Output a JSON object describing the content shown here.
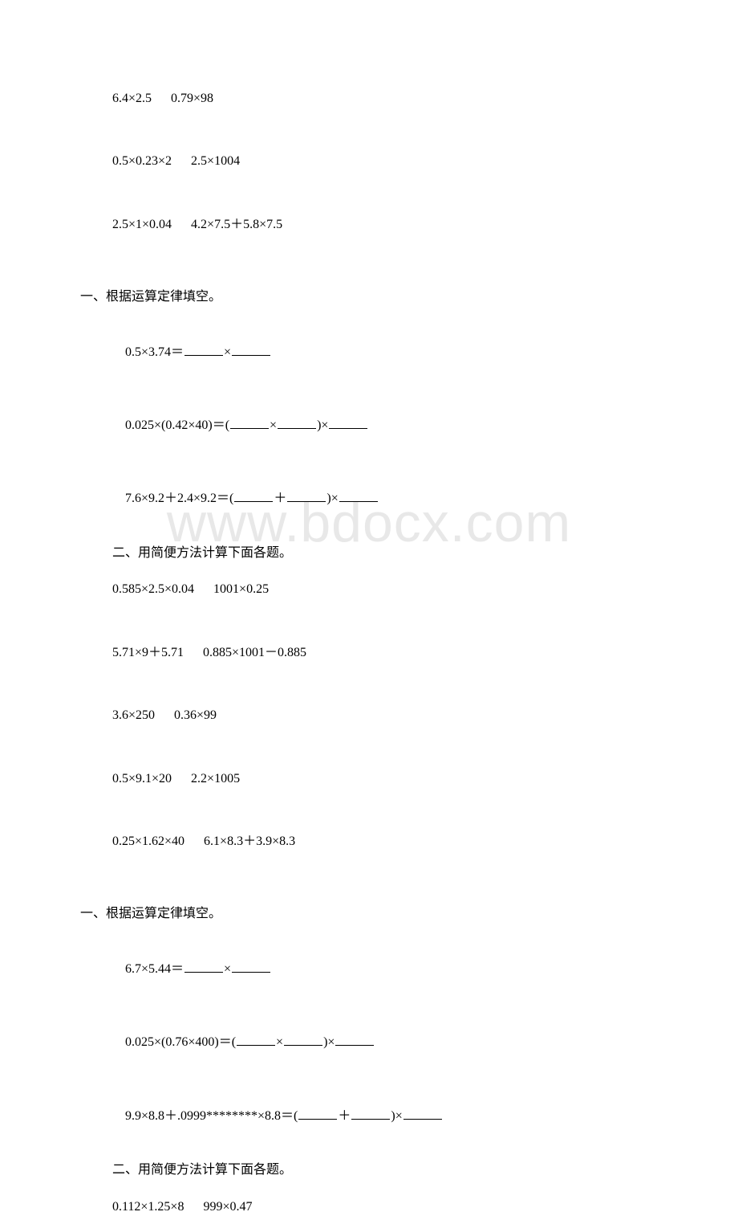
{
  "watermark": "www.bdocx.com",
  "block1": {
    "lines": [
      "6.4×2.5      0.79×98",
      "0.5×0.23×2      2.5×1004",
      "2.5×1×0.04      4.2×7.5＋5.8×7.5"
    ]
  },
  "section2": {
    "header": "一、根据运算定律填空。",
    "fill1_prefix": "0.5×3.74＝",
    "fill1_mid": "×",
    "fill2_prefix": "0.025×(0.42×40)＝(",
    "fill2_mid1": "×",
    "fill2_mid2": ")×",
    "fill3_prefix": "7.6×9.2＋2.4×9.2＝(",
    "fill3_mid1": "＋",
    "fill3_mid2": ")×",
    "sub_header": "二、用简便方法计算下面各题。",
    "calc_lines": [
      "0.585×2.5×0.04      1001×0.25",
      "5.71×9＋5.71      0.885×1001－0.885",
      "3.6×250      0.36×99",
      "0.5×9.1×20      2.2×1005",
      "0.25×1.62×40      6.1×8.3＋3.9×8.3"
    ]
  },
  "section3": {
    "header": "一、根据运算定律填空。",
    "fill1_prefix": "6.7×5.44＝",
    "fill1_mid": "×",
    "fill2_prefix": "0.025×(0.76×400)＝(",
    "fill2_mid1": "×",
    "fill2_mid2": ")×",
    "fill3_prefix": "9.9×8.8＋.0999********×8.8＝(",
    "fill3_mid1": "＋",
    "fill3_mid2": ")×",
    "sub_header": "二、用简便方法计算下面各题。",
    "calc_lines": [
      "0.112×1.25×8      999×0.47"
    ]
  }
}
